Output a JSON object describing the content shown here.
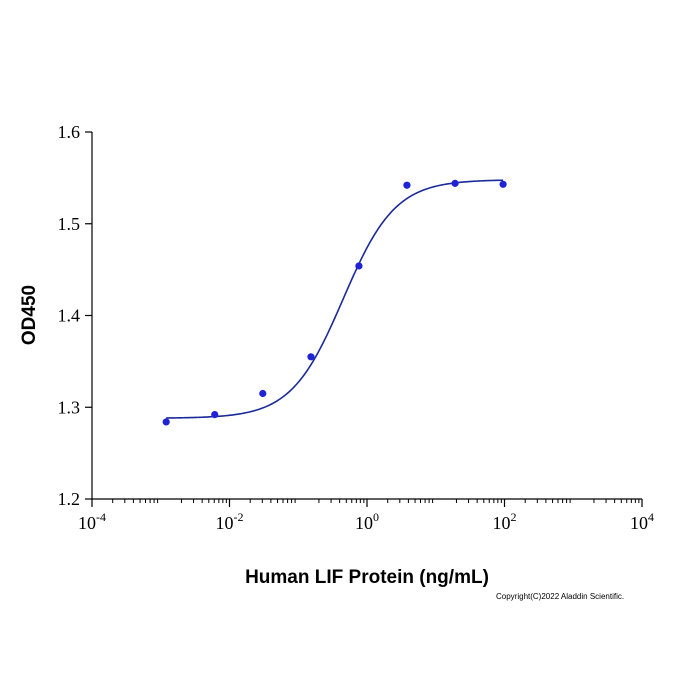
{
  "chart_data": {
    "type": "scatter",
    "title": "",
    "xlabel": "Human LIF Protein (ng/mL)",
    "ylabel": "OD450",
    "x_scale": "log",
    "xlim": [
      0.0001,
      10000
    ],
    "ylim": [
      1.2,
      1.6
    ],
    "x_ticks": [
      {
        "value": 0.0001,
        "base": "10",
        "exp": "-4"
      },
      {
        "value": 0.01,
        "base": "10",
        "exp": "-2"
      },
      {
        "value": 1,
        "base": "10",
        "exp": "0"
      },
      {
        "value": 100,
        "base": "10",
        "exp": "2"
      },
      {
        "value": 10000,
        "base": "10",
        "exp": "4"
      }
    ],
    "y_ticks": [
      {
        "value": 1.2,
        "label": "1.2"
      },
      {
        "value": 1.3,
        "label": "1.3"
      },
      {
        "value": 1.4,
        "label": "1.4"
      },
      {
        "value": 1.5,
        "label": "1.5"
      },
      {
        "value": 1.6,
        "label": "1.6"
      }
    ],
    "grid": false,
    "series": [
      {
        "color": "#1f22d6",
        "points": [
          {
            "x": 0.0012,
            "y": 1.284
          },
          {
            "x": 0.0061,
            "y": 1.292
          },
          {
            "x": 0.0305,
            "y": 1.315
          },
          {
            "x": 0.153,
            "y": 1.355
          },
          {
            "x": 0.763,
            "y": 1.454
          },
          {
            "x": 3.81,
            "y": 1.542
          },
          {
            "x": 19.1,
            "y": 1.544
          },
          {
            "x": 95.4,
            "y": 1.543
          }
        ]
      }
    ],
    "fit_curve": {
      "color": "#1a2a9a",
      "bottom": 1.288,
      "top": 1.548,
      "ec50": 0.45,
      "hill": 1.15,
      "x_range": [
        0.0012,
        95.4
      ]
    }
  },
  "footer": {
    "copyright": "Copyright(C)2022 Aladdin Scientific."
  }
}
